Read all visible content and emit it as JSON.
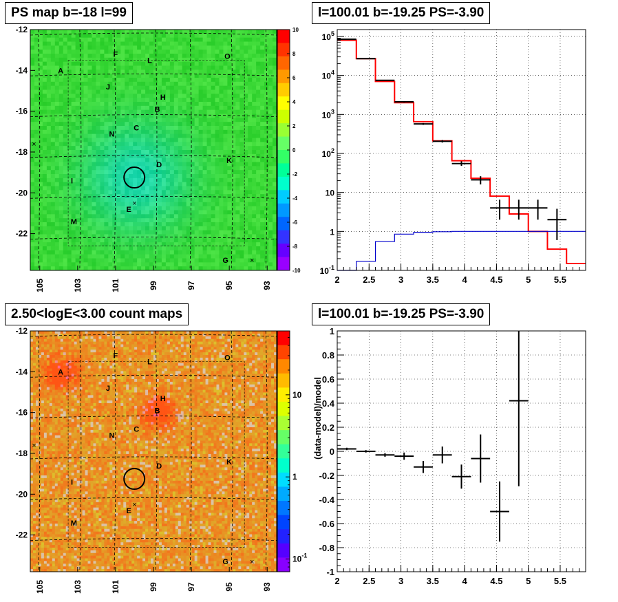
{
  "panels": {
    "ps_map": {
      "title": "PS map b=-18 l=99",
      "y_ticks": [
        "-12",
        "-14",
        "-16",
        "-18",
        "-20",
        "-22"
      ],
      "x_ticks": [
        "105",
        "103",
        "101",
        "99",
        "97",
        "95",
        "93"
      ],
      "colorbar_ticks": [
        "10",
        "8",
        "6",
        "4",
        "2",
        "0",
        "-2",
        "-4",
        "-6",
        "-8",
        "-10"
      ],
      "colorbar_range": [
        -10,
        10
      ]
    },
    "spectrum": {
      "title": "l=100.01 b=-19.25 PS=-3.90",
      "y_ticks": [
        "10^5",
        "10^4",
        "10^3",
        "10^2",
        "10",
        "1",
        "10^-1"
      ],
      "x_ticks": [
        "2",
        "2.5",
        "3",
        "3.5",
        "4",
        "4.5",
        "5",
        "5.5"
      ]
    },
    "count_map": {
      "title": "2.50<logE<3.00 count maps",
      "y_ticks": [
        "-12",
        "-14",
        "-16",
        "-18",
        "-20",
        "-22"
      ],
      "x_ticks": [
        "105",
        "103",
        "101",
        "99",
        "97",
        "95",
        "93"
      ],
      "colorbar_ticks": [
        "10",
        "1",
        "10^-1"
      ]
    },
    "residuals": {
      "title": "l=100.01 b=-19.25 PS=-3.90",
      "ylabel": "(data-model)/model",
      "y_ticks": [
        "1",
        "0.8",
        "0.6",
        "0.4",
        "0.2",
        "0",
        "-0.2",
        "-0.4",
        "-0.6",
        "-0.8",
        "-1"
      ],
      "x_ticks": [
        "2",
        "2.5",
        "3",
        "3.5",
        "4",
        "4.5",
        "5",
        "5.5"
      ]
    }
  },
  "sources": [
    "A",
    "B",
    "C",
    "D",
    "E",
    "F",
    "G",
    "H",
    "I",
    "J",
    "K",
    "L",
    "M",
    "N",
    "O"
  ],
  "colors": {
    "model": "#ff0000",
    "background": "#0000cc",
    "data": "#000000",
    "map_base": "#33dd33",
    "count_base": "#ffcc33"
  },
  "chart_data": [
    {
      "type": "heatmap",
      "title": "PS map b=-18 l=99",
      "x_range": [
        105.5,
        92.5
      ],
      "y_range": [
        -23.8,
        -12
      ],
      "z_range": [
        -10,
        10
      ],
      "markers": [
        {
          "label": "A",
          "l": 103.9,
          "b": -14.0
        },
        {
          "label": "F",
          "l": 101.0,
          "b": -13.2
        },
        {
          "label": "L",
          "l": 99.2,
          "b": -13.5
        },
        {
          "label": "O",
          "l": 95.1,
          "b": -13.3
        },
        {
          "label": "J",
          "l": 101.4,
          "b": -14.8
        },
        {
          "label": "H",
          "l": 98.5,
          "b": -15.3
        },
        {
          "label": "B",
          "l": 98.8,
          "b": -15.9
        },
        {
          "label": "C",
          "l": 99.9,
          "b": -16.8
        },
        {
          "label": "N",
          "l": 101.2,
          "b": -17.1
        },
        {
          "label": "D",
          "l": 98.7,
          "b": -18.6
        },
        {
          "label": "K",
          "l": 95.0,
          "b": -18.4
        },
        {
          "label": "I",
          "l": 103.3,
          "b": -19.4
        },
        {
          "label": "E",
          "l": 100.3,
          "b": -20.8
        },
        {
          "label": "M",
          "l": 103.2,
          "b": -21.4
        },
        {
          "label": "G",
          "l": 95.2,
          "b": -23.3
        }
      ],
      "circle": {
        "l": 100.01,
        "b": -19.25
      }
    },
    {
      "type": "line",
      "title": "l=100.01 b=-19.25 PS=-3.90",
      "xlim": [
        2,
        5.9
      ],
      "ylim": [
        0.1,
        150000
      ],
      "yscale": "log",
      "series": [
        {
          "style": "step",
          "color": "#ff0000",
          "edges": [
            2.0,
            2.3,
            2.6,
            2.9,
            3.2,
            3.5,
            3.8,
            4.1,
            4.4,
            4.7,
            5.0,
            5.3,
            5.6,
            5.9
          ],
          "values": [
            80000,
            27000,
            7000,
            2000,
            650,
            210,
            65,
            23,
            8,
            2.8,
            1.0,
            0.35,
            0.15
          ]
        },
        {
          "style": "step",
          "color": "#0000cc",
          "edges": [
            2.0,
            2.3,
            2.6,
            2.9,
            3.2,
            3.5,
            3.8,
            4.1,
            4.4,
            4.7,
            5.0,
            5.3,
            5.6,
            5.9
          ],
          "values": [
            0.1,
            0.17,
            0.55,
            0.85,
            0.95,
            0.98,
            1.0,
            1.0,
            1.0,
            1.0,
            1.0,
            1.0,
            1.0
          ]
        },
        {
          "style": "errorbar",
          "color": "#000000",
          "points": [
            {
              "x": 2.15,
              "y": 85000,
              "xerr": 0.15,
              "ylo": 84000,
              "yhi": 86000
            },
            {
              "x": 2.45,
              "y": 27000,
              "xerr": 0.15,
              "ylo": 26500,
              "yhi": 27500
            },
            {
              "x": 2.75,
              "y": 7500,
              "xerr": 0.15,
              "ylo": 7300,
              "yhi": 7700
            },
            {
              "x": 3.05,
              "y": 2100,
              "xerr": 0.15,
              "ylo": 2000,
              "yhi": 2200
            },
            {
              "x": 3.35,
              "y": 570,
              "xerr": 0.15,
              "ylo": 540,
              "yhi": 600
            },
            {
              "x": 3.65,
              "y": 205,
              "xerr": 0.15,
              "ylo": 190,
              "yhi": 220
            },
            {
              "x": 3.95,
              "y": 55,
              "xerr": 0.15,
              "ylo": 48,
              "yhi": 63
            },
            {
              "x": 4.25,
              "y": 21,
              "xerr": 0.15,
              "ylo": 16,
              "yhi": 26
            },
            {
              "x": 4.55,
              "y": 4,
              "xerr": 0.15,
              "ylo": 2.0,
              "yhi": 6.5
            },
            {
              "x": 4.85,
              "y": 4,
              "xerr": 0.15,
              "ylo": 2.0,
              "yhi": 6.5
            },
            {
              "x": 5.15,
              "y": 4,
              "xerr": 0.15,
              "ylo": 2.0,
              "yhi": 6.5
            },
            {
              "x": 5.45,
              "y": 2,
              "xerr": 0.15,
              "ylo": 0.6,
              "yhi": 3.8
            }
          ]
        }
      ]
    },
    {
      "type": "heatmap",
      "title": "2.50<logE<3.00 count maps",
      "x_range": [
        105.5,
        92.5
      ],
      "y_range": [
        -23.8,
        -12
      ],
      "z_scale": "log",
      "z_range": [
        0.07,
        60
      ],
      "hotspots": [
        {
          "label": "A",
          "l": 103.9,
          "b": -14.0
        },
        {
          "label": "B",
          "l": 98.8,
          "b": -15.9
        }
      ],
      "circle": {
        "l": 100.01,
        "b": -19.25
      }
    },
    {
      "type": "scatter",
      "title": "l=100.01 b=-19.25 PS=-3.90",
      "ylabel": "(data-model)/model",
      "xlim": [
        2,
        5.9
      ],
      "ylim": [
        -1,
        1
      ],
      "points": [
        {
          "x": 2.15,
          "y": 0.02,
          "xerr": 0.15,
          "yerr": 0.01
        },
        {
          "x": 2.45,
          "y": 0.0,
          "xerr": 0.15,
          "yerr": 0.01
        },
        {
          "x": 2.75,
          "y": -0.03,
          "xerr": 0.15,
          "yerr": 0.015
        },
        {
          "x": 3.05,
          "y": -0.04,
          "xerr": 0.15,
          "yerr": 0.03
        },
        {
          "x": 3.35,
          "y": -0.13,
          "xerr": 0.15,
          "yerr": 0.05
        },
        {
          "x": 3.65,
          "y": -0.03,
          "xerr": 0.15,
          "yerr": 0.07
        },
        {
          "x": 3.95,
          "y": -0.21,
          "xerr": 0.15,
          "yerr": 0.1
        },
        {
          "x": 4.25,
          "y": -0.06,
          "xerr": 0.15,
          "yerr": 0.2
        },
        {
          "x": 4.55,
          "y": -0.5,
          "xerr": 0.15,
          "yerr": 0.25
        },
        {
          "x": 4.85,
          "y": 0.42,
          "xerr": 0.15,
          "yerr": 0.71
        }
      ]
    }
  ]
}
